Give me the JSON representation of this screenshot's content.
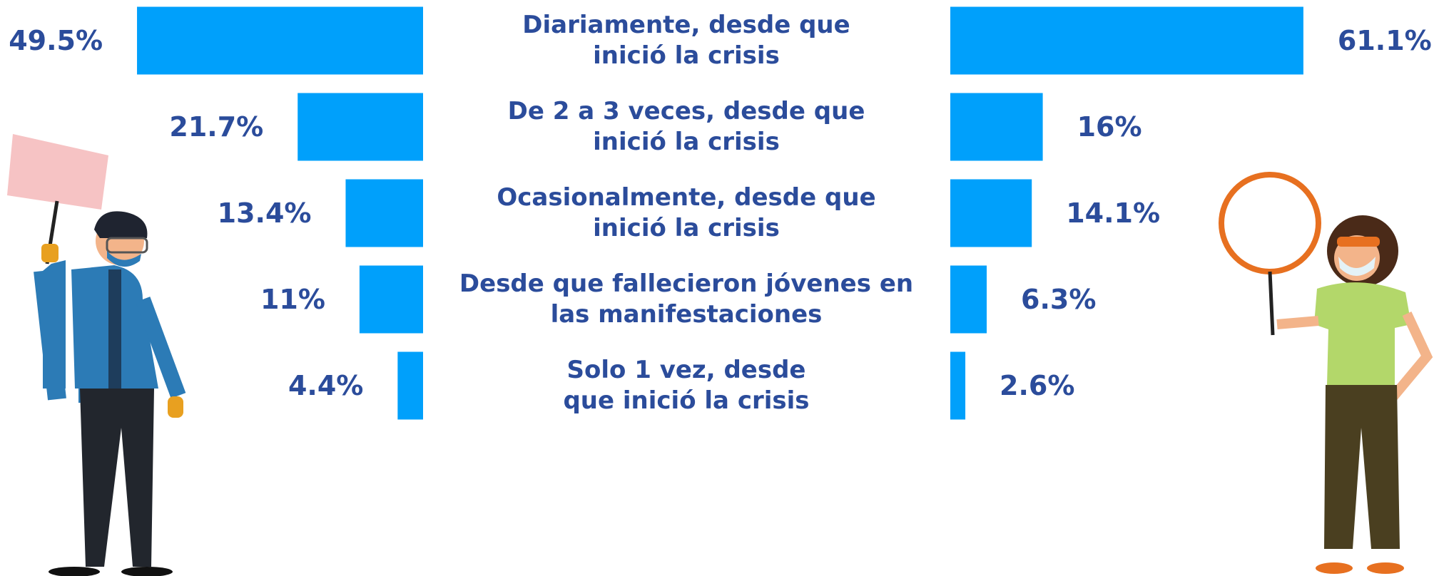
{
  "chart_data": {
    "type": "butterfly-bar",
    "categories": [
      "Diariamente, desde que\ninició la crisis",
      "De 2 a 3 veces, desde que\ninició la crisis",
      "Ocasionalmente, desde que\ninició la crisis",
      "Desde que fallecieron jóvenes en\nlas manifestaciones",
      "Solo 1 vez, desde\nque inició la crisis"
    ],
    "series": [
      {
        "color": "#00a0fb",
        "values": [
          49.5,
          21.7,
          13.4,
          11,
          4.4
        ],
        "value_labels": [
          "49.5%",
          "21.7%",
          "13.4%",
          "11%",
          "4.4%"
        ]
      },
      {
        "color": "#00a0fb",
        "values": [
          61.1,
          16,
          14.1,
          6.3,
          2.6
        ],
        "value_labels": [
          "61.1%",
          "16%",
          "14.1%",
          "6.3%",
          "2.6%"
        ]
      }
    ]
  }
}
